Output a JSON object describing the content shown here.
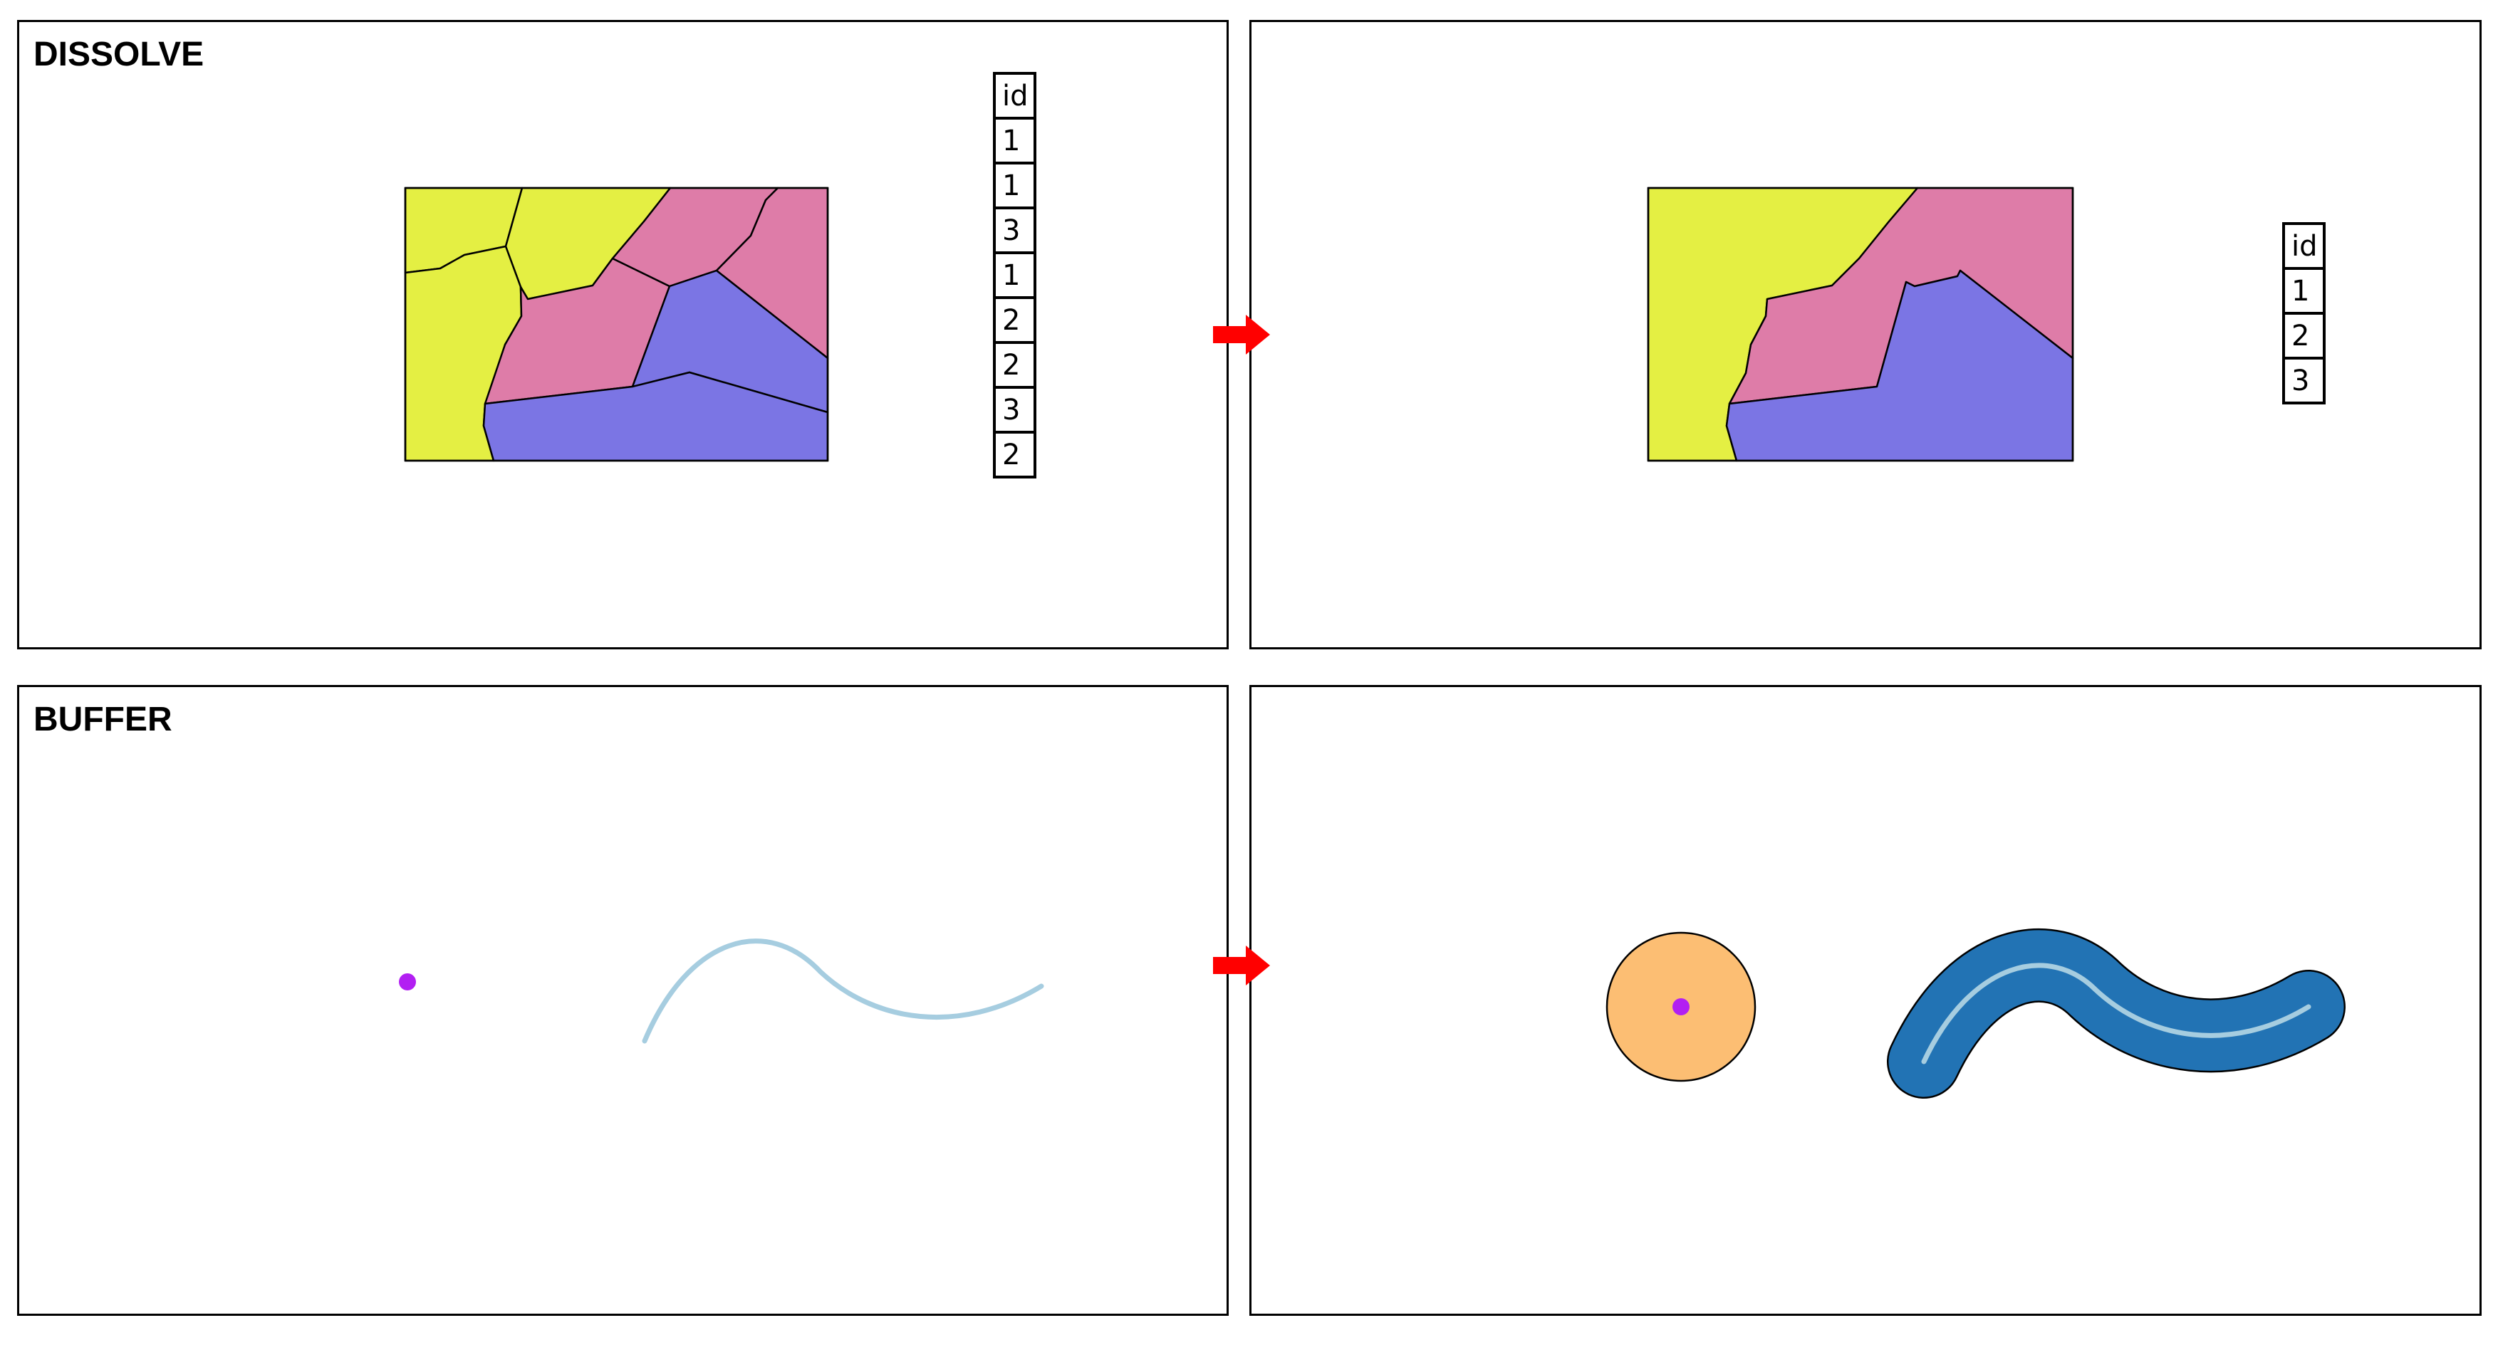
{
  "dissolve": {
    "title": "DISSOLVE",
    "input_table": {
      "header": "id",
      "rows": [
        "1",
        "1",
        "3",
        "1",
        "2",
        "2",
        "3",
        "2"
      ]
    },
    "output_table": {
      "header": "id",
      "rows": [
        "1",
        "2",
        "3"
      ]
    }
  },
  "buffer": {
    "title": "BUFFER"
  },
  "colors": {
    "yellow_region": "#e4ef43",
    "pink_region": "#de7ca8",
    "purple_region": "#7b75e4",
    "point": "#b21ff2",
    "line": "#a6cde0",
    "point_buffer": "#fcbe73",
    "line_buffer": "#2273b4",
    "arrow": "#ff0000"
  }
}
